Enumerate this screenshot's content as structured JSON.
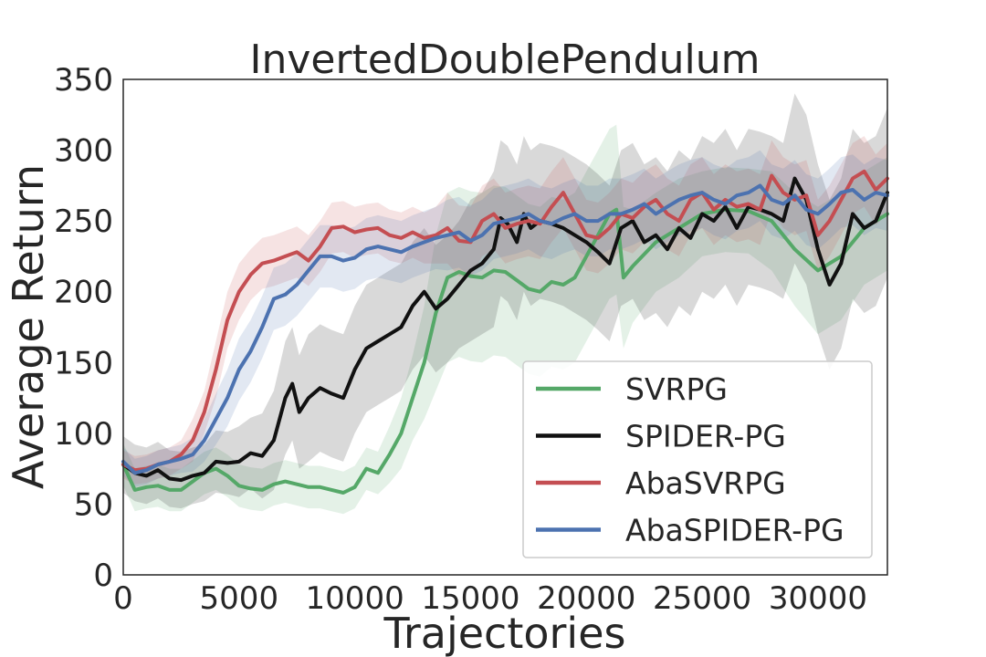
{
  "chart_data": {
    "type": "line",
    "title": "InvertedDoublePendulum",
    "xlabel": "Trajectories",
    "ylabel": "Average Return",
    "xlim": [
      0,
      33000
    ],
    "ylim": [
      0,
      350
    ],
    "xticks": [
      0,
      5000,
      10000,
      15000,
      20000,
      25000,
      30000
    ],
    "yticks": [
      0,
      50,
      100,
      150,
      200,
      250,
      300,
      350
    ],
    "grid": false,
    "legend_position": "lower right",
    "series": [
      {
        "name": "SVRPG",
        "color": "#55a868",
        "x": [
          0,
          500,
          1000,
          1500,
          2000,
          2500,
          3000,
          3500,
          4000,
          4500,
          5000,
          5500,
          6000,
          6500,
          7000,
          7500,
          8000,
          8500,
          9000,
          9500,
          10000,
          10500,
          11000,
          11500,
          12000,
          12500,
          13000,
          13500,
          14000,
          14500,
          15000,
          15500,
          16000,
          16500,
          17000,
          17500,
          18000,
          18500,
          19000,
          19500,
          20000,
          20500,
          21000,
          21300,
          21600,
          22000,
          23000,
          24000,
          25000,
          26000,
          27000,
          28000,
          29000,
          30000,
          31000,
          32000,
          33000
        ],
        "y": [
          78,
          60,
          62,
          63,
          60,
          60,
          66,
          72,
          75,
          70,
          63,
          61,
          60,
          64,
          66,
          64,
          62,
          62,
          60,
          58,
          62,
          75,
          72,
          85,
          100,
          125,
          150,
          185,
          210,
          214,
          211,
          210,
          215,
          214,
          208,
          202,
          200,
          207,
          205,
          210,
          225,
          240,
          255,
          258,
          210,
          218,
          235,
          245,
          255,
          258,
          257,
          250,
          230,
          215,
          225,
          245,
          255
        ],
        "band": [
          15,
          15,
          15,
          15,
          15,
          15,
          15,
          15,
          15,
          15,
          15,
          15,
          15,
          15,
          15,
          15,
          15,
          15,
          15,
          15,
          15,
          15,
          15,
          20,
          25,
          30,
          40,
          55,
          60,
          60,
          60,
          60,
          60,
          60,
          60,
          60,
          60,
          60,
          60,
          60,
          60,
          60,
          60,
          60,
          50,
          40,
          35,
          35,
          30,
          30,
          30,
          35,
          40,
          45,
          45,
          40,
          40
        ]
      },
      {
        "name": "SPIDER-PG",
        "color": "#111111",
        "x": [
          0,
          500,
          1000,
          1500,
          2000,
          2500,
          3000,
          3500,
          4000,
          4500,
          5000,
          5500,
          6000,
          6500,
          7000,
          7300,
          7600,
          8000,
          8500,
          9000,
          9500,
          10000,
          10500,
          11000,
          11500,
          12000,
          12500,
          13000,
          13500,
          14000,
          14500,
          15000,
          15500,
          16000,
          16300,
          16600,
          17000,
          17300,
          17600,
          18000,
          18500,
          19000,
          19500,
          20000,
          20500,
          21000,
          21500,
          22000,
          22500,
          23000,
          23500,
          24000,
          24500,
          25000,
          25500,
          26000,
          26500,
          27000,
          27500,
          28000,
          28500,
          29000,
          29500,
          30000,
          30500,
          31000,
          31500,
          32000,
          32500,
          33000
        ],
        "y": [
          78,
          72,
          70,
          74,
          68,
          67,
          70,
          72,
          80,
          79,
          80,
          86,
          84,
          95,
          125,
          135,
          115,
          125,
          132,
          128,
          125,
          145,
          160,
          165,
          170,
          175,
          190,
          200,
          188,
          195,
          205,
          215,
          220,
          230,
          252,
          248,
          235,
          255,
          245,
          250,
          248,
          245,
          240,
          235,
          228,
          220,
          245,
          250,
          235,
          240,
          230,
          245,
          238,
          255,
          250,
          260,
          245,
          260,
          258,
          255,
          250,
          280,
          265,
          230,
          205,
          220,
          255,
          245,
          250,
          270
        ],
        "band": [
          20,
          20,
          20,
          20,
          20,
          20,
          20,
          20,
          22,
          22,
          25,
          25,
          30,
          35,
          40,
          40,
          40,
          45,
          45,
          45,
          45,
          45,
          45,
          45,
          45,
          45,
          45,
          45,
          45,
          45,
          45,
          50,
          50,
          55,
          55,
          55,
          55,
          55,
          55,
          55,
          55,
          55,
          55,
          55,
          55,
          55,
          55,
          55,
          55,
          55,
          55,
          55,
          55,
          55,
          55,
          55,
          55,
          55,
          55,
          55,
          55,
          60,
          60,
          60,
          60,
          60,
          60,
          60,
          60,
          60
        ]
      },
      {
        "name": "AbaSVRPG",
        "color": "#c44e52",
        "x": [
          0,
          500,
          1000,
          1500,
          2000,
          2500,
          3000,
          3500,
          4000,
          4500,
          5000,
          5500,
          6000,
          6500,
          7000,
          7500,
          8000,
          8500,
          9000,
          9500,
          10000,
          10500,
          11000,
          11500,
          12000,
          12500,
          13000,
          13500,
          14000,
          14500,
          15000,
          15500,
          16000,
          16500,
          17000,
          17500,
          18000,
          18500,
          19000,
          19500,
          20000,
          20500,
          21000,
          21500,
          22000,
          22500,
          23000,
          23500,
          24000,
          24500,
          25000,
          25500,
          26000,
          26500,
          27000,
          27500,
          28000,
          28500,
          29000,
          29500,
          30000,
          30500,
          31000,
          31500,
          32000,
          32500,
          33000
        ],
        "y": [
          78,
          74,
          75,
          78,
          80,
          85,
          95,
          115,
          145,
          180,
          200,
          212,
          220,
          222,
          225,
          228,
          222,
          232,
          245,
          246,
          242,
          244,
          245,
          240,
          238,
          242,
          238,
          240,
          245,
          236,
          235,
          250,
          255,
          245,
          248,
          250,
          248,
          260,
          270,
          255,
          240,
          238,
          245,
          255,
          252,
          260,
          265,
          255,
          250,
          265,
          270,
          258,
          265,
          260,
          262,
          258,
          282,
          270,
          265,
          268,
          240,
          250,
          265,
          280,
          285,
          272,
          280
        ],
        "band": [
          10,
          10,
          10,
          10,
          10,
          10,
          15,
          15,
          20,
          20,
          20,
          18,
          18,
          18,
          18,
          18,
          18,
          18,
          18,
          18,
          18,
          18,
          18,
          18,
          18,
          18,
          18,
          20,
          25,
          25,
          25,
          25,
          25,
          25,
          25,
          25,
          25,
          25,
          25,
          25,
          25,
          25,
          25,
          25,
          25,
          25,
          25,
          25,
          25,
          25,
          25,
          25,
          25,
          25,
          25,
          25,
          25,
          25,
          25,
          25,
          25,
          25,
          25,
          25,
          25,
          25,
          25
        ]
      },
      {
        "name": "AbaSPIDER-PG",
        "color": "#4c72b0",
        "x": [
          0,
          500,
          1000,
          1500,
          2000,
          2500,
          3000,
          3500,
          4000,
          4500,
          5000,
          5500,
          6000,
          6500,
          7000,
          7500,
          8000,
          8500,
          9000,
          9500,
          10000,
          10500,
          11000,
          11500,
          12000,
          12500,
          13000,
          13500,
          14000,
          14500,
          15000,
          15500,
          16000,
          16500,
          17000,
          17500,
          18000,
          18500,
          19000,
          19500,
          20000,
          20500,
          21000,
          21500,
          22000,
          22500,
          23000,
          23500,
          24000,
          24500,
          25000,
          25500,
          26000,
          26500,
          27000,
          27500,
          28000,
          28500,
          29000,
          29500,
          30000,
          30500,
          31000,
          31500,
          32000,
          32500,
          33000
        ],
        "y": [
          80,
          72,
          74,
          78,
          80,
          82,
          85,
          95,
          110,
          125,
          145,
          158,
          175,
          195,
          198,
          205,
          215,
          225,
          225,
          222,
          224,
          230,
          232,
          230,
          228,
          232,
          235,
          238,
          240,
          242,
          236,
          240,
          248,
          250,
          252,
          255,
          250,
          248,
          252,
          255,
          250,
          250,
          255,
          255,
          258,
          262,
          255,
          260,
          265,
          268,
          270,
          265,
          262,
          268,
          270,
          275,
          265,
          262,
          268,
          258,
          255,
          262,
          270,
          272,
          265,
          270,
          268
        ],
        "band": [
          10,
          10,
          10,
          10,
          10,
          10,
          12,
          15,
          18,
          20,
          22,
          22,
          22,
          22,
          22,
          22,
          22,
          22,
          22,
          22,
          22,
          22,
          22,
          22,
          22,
          22,
          22,
          22,
          25,
          25,
          25,
          25,
          25,
          25,
          25,
          25,
          25,
          25,
          25,
          25,
          25,
          25,
          25,
          25,
          25,
          25,
          25,
          25,
          25,
          25,
          25,
          25,
          25,
          25,
          25,
          25,
          25,
          25,
          25,
          25,
          25,
          25,
          25,
          25,
          25,
          25,
          25
        ]
      }
    ]
  }
}
